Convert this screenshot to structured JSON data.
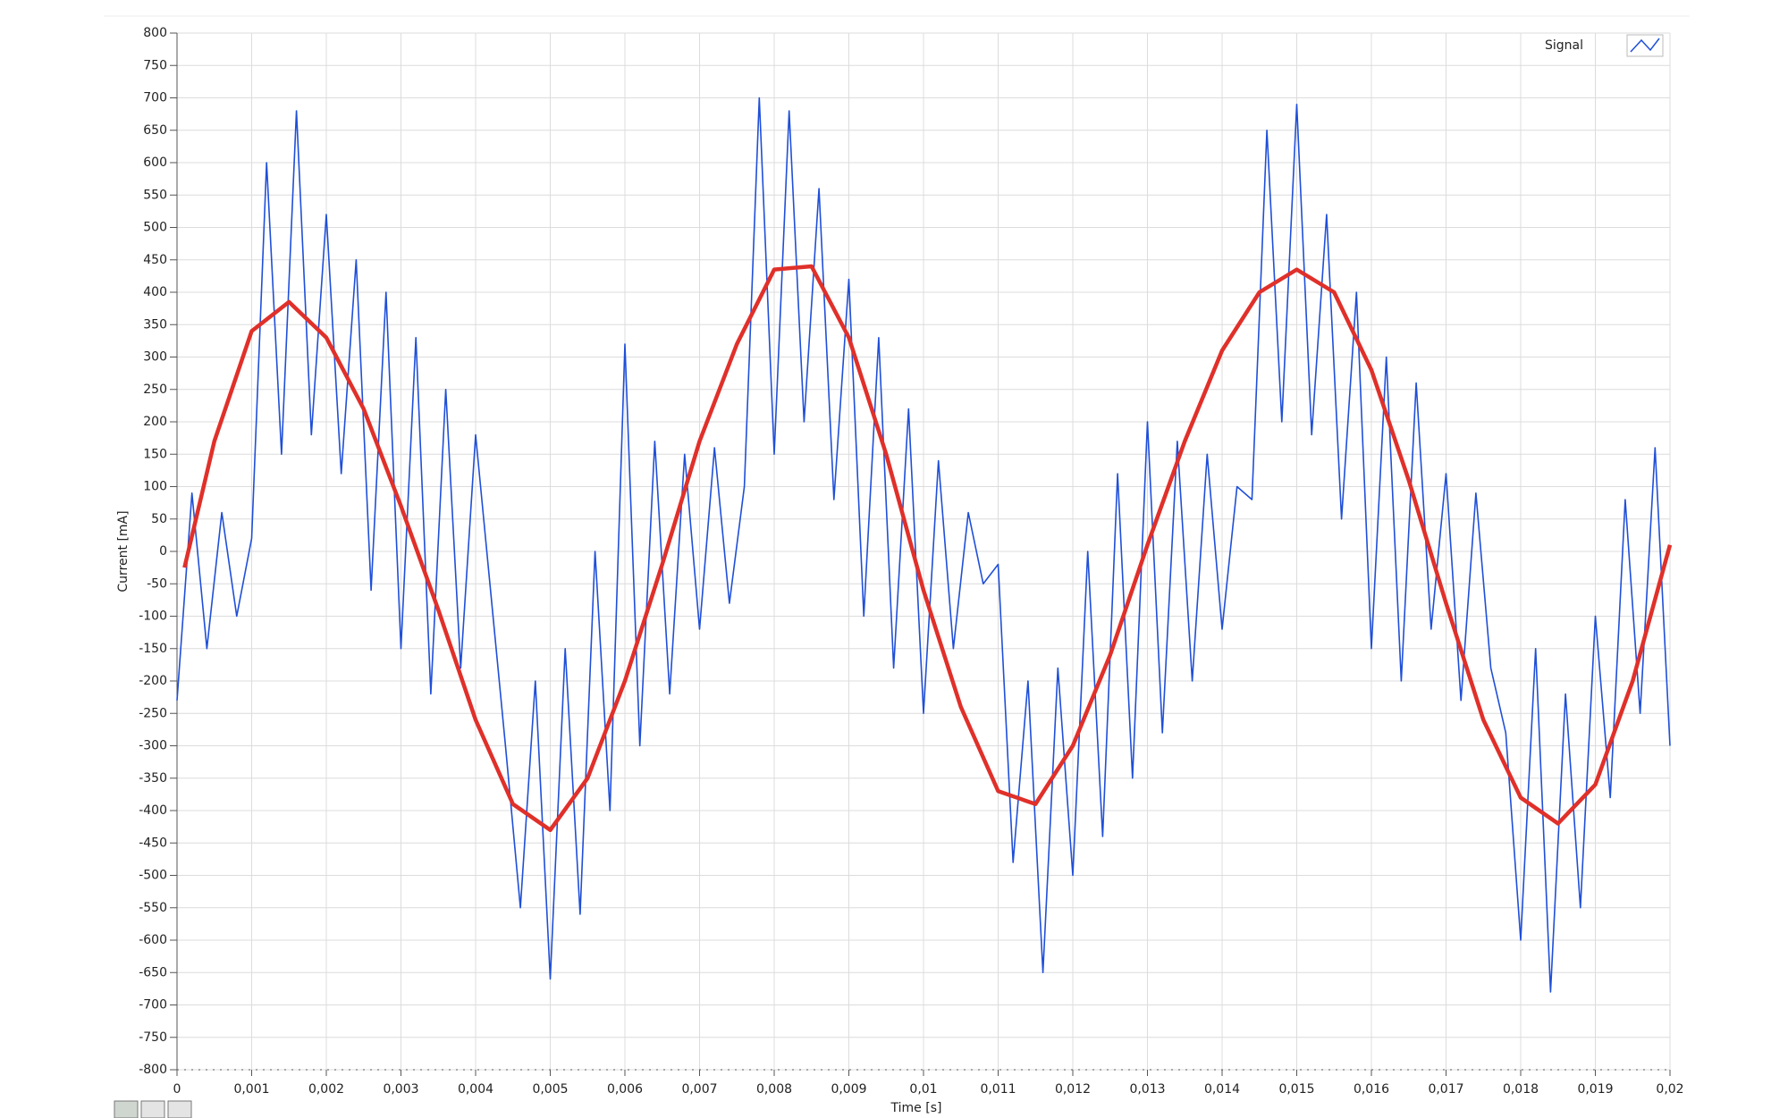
{
  "chart_data": {
    "type": "line",
    "xlabel": "Time [s]",
    "ylabel": "Current [mA]",
    "legend": "top-right",
    "grid": true,
    "xlim": [
      0,
      0.02
    ],
    "ylim": [
      -800,
      800
    ],
    "xticks": [
      0,
      {
        "value": 0.001,
        "label": "0,001"
      },
      {
        "value": 0.002,
        "label": "0,002"
      },
      {
        "value": 0.003,
        "label": "0,003"
      },
      {
        "value": 0.004,
        "label": "0,004"
      },
      {
        "value": 0.005,
        "label": "0,005"
      },
      {
        "value": 0.006,
        "label": "0,006"
      },
      {
        "value": 0.007,
        "label": "0,007"
      },
      {
        "value": 0.008,
        "label": "0,008"
      },
      {
        "value": 0.009,
        "label": "0,009"
      },
      {
        "value": 0.01,
        "label": "0,01"
      },
      {
        "value": 0.011,
        "label": "0,011"
      },
      {
        "value": 0.012,
        "label": "0,012"
      },
      {
        "value": 0.013,
        "label": "0,013"
      },
      {
        "value": 0.014,
        "label": "0,014"
      },
      {
        "value": 0.015,
        "label": "0,015"
      },
      {
        "value": 0.016,
        "label": "0,016"
      },
      {
        "value": 0.017,
        "label": "0,017"
      },
      {
        "value": 0.018,
        "label": "0,018"
      },
      {
        "value": 0.019,
        "label": "0,019"
      },
      {
        "value": 0.02,
        "label": "0,02"
      }
    ],
    "yticks": [
      -800,
      -750,
      -700,
      -650,
      -600,
      -550,
      -500,
      -450,
      -400,
      -350,
      -300,
      -250,
      -200,
      -150,
      -100,
      -50,
      0,
      50,
      100,
      150,
      200,
      250,
      300,
      350,
      400,
      450,
      500,
      550,
      600,
      650,
      700,
      750,
      800
    ],
    "series": [
      {
        "name": "Signal",
        "color": "#1f4fd8",
        "x": [
          0,
          0.0002,
          0.0004,
          0.0006,
          0.0008,
          0.001,
          0.0012,
          0.0014,
          0.0016,
          0.0018,
          0.002,
          0.0022,
          0.0024,
          0.0026,
          0.0028,
          0.003,
          0.0032,
          0.0034,
          0.0036,
          0.0038,
          0.004,
          0.0042,
          0.0044,
          0.0046,
          0.0048,
          0.005,
          0.0052,
          0.0054,
          0.0056,
          0.0058,
          0.006,
          0.0062,
          0.0064,
          0.0066,
          0.0068,
          0.007,
          0.0072,
          0.0074,
          0.0076,
          0.0078,
          0.008,
          0.0082,
          0.0084,
          0.0086,
          0.0088,
          0.009,
          0.0092,
          0.0094,
          0.0096,
          0.0098,
          0.01,
          0.0102,
          0.0104,
          0.0106,
          0.0108,
          0.011,
          0.0112,
          0.0114,
          0.0116,
          0.0118,
          0.012,
          0.0122,
          0.0124,
          0.0126,
          0.0128,
          0.013,
          0.0132,
          0.0134,
          0.0136,
          0.0138,
          0.014,
          0.0142,
          0.0144,
          0.0146,
          0.0148,
          0.015,
          0.0152,
          0.0154,
          0.0156,
          0.0158,
          0.016,
          0.0162,
          0.0164,
          0.0166,
          0.0168,
          0.017,
          0.0172,
          0.0174,
          0.0176,
          0.0178,
          0.018,
          0.0182,
          0.0184,
          0.0186,
          0.0188,
          0.019,
          0.0192,
          0.0194,
          0.0196,
          0.0198,
          0.02
        ],
        "values": [
          -230,
          90,
          -150,
          60,
          -100,
          20,
          600,
          150,
          680,
          180,
          520,
          120,
          450,
          -60,
          400,
          -150,
          330,
          -220,
          250,
          -180,
          180,
          -60,
          -300,
          -550,
          -200,
          -660,
          -150,
          -560,
          0,
          -400,
          320,
          -300,
          170,
          -220,
          150,
          -120,
          160,
          -80,
          100,
          700,
          150,
          680,
          200,
          560,
          80,
          420,
          -100,
          330,
          -180,
          220,
          -250,
          140,
          -150,
          60,
          -50,
          -20,
          -480,
          -200,
          -650,
          -180,
          -500,
          0,
          -440,
          120,
          -350,
          200,
          -280,
          170,
          -200,
          150,
          -120,
          100,
          80,
          650,
          200,
          690,
          180,
          520,
          50,
          400,
          -150,
          300,
          -200,
          260,
          -120,
          120,
          -230,
          90,
          -180,
          -280,
          -600,
          -150,
          -680,
          -220,
          -550,
          -100,
          -380,
          80,
          -250,
          160,
          -300
        ]
      },
      {
        "color": "#e0302a",
        "x": [
          0.0001,
          0.0005,
          0.001,
          0.0015,
          0.002,
          0.0025,
          0.003,
          0.0035,
          0.004,
          0.0045,
          0.005,
          0.0055,
          0.006,
          0.0065,
          0.007,
          0.0075,
          0.008,
          0.0085,
          0.009,
          0.0095,
          0.01,
          0.0105,
          0.011,
          0.0115,
          0.012,
          0.0125,
          0.013,
          0.0135,
          0.014,
          0.0145,
          0.015,
          0.0155,
          0.016,
          0.0165,
          0.017,
          0.0175,
          0.018,
          0.0185,
          0.019,
          0.0195,
          0.02
        ],
        "values": [
          -25,
          170,
          340,
          385,
          330,
          220,
          70,
          -90,
          -260,
          -390,
          -430,
          -350,
          -200,
          -20,
          170,
          320,
          435,
          440,
          330,
          150,
          -60,
          -240,
          -370,
          -390,
          -300,
          -160,
          10,
          170,
          310,
          400,
          435,
          400,
          280,
          110,
          -80,
          -260,
          -380,
          -420,
          -360,
          -200,
          10
        ]
      }
    ]
  }
}
